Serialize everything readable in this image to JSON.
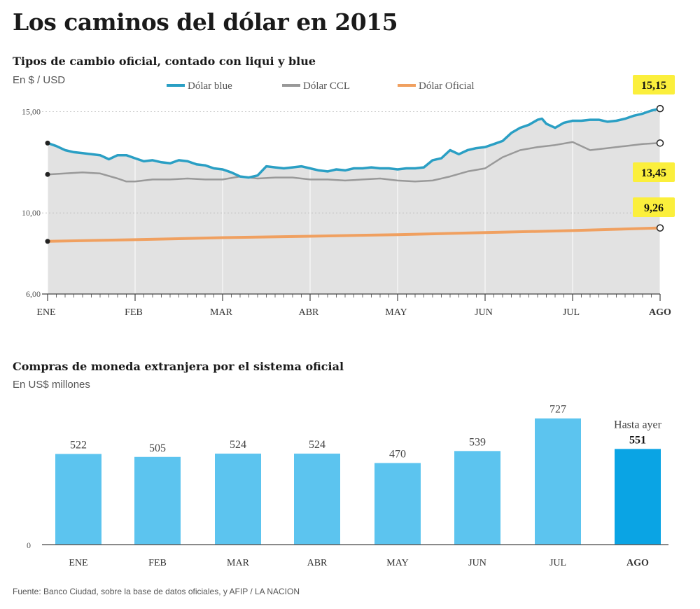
{
  "header": {
    "title": "Los caminos del dólar en 2015"
  },
  "line_section": {
    "subtitle": "Tipos de cambio oficial, contado con liqui y blue",
    "unit": "En $ / USD"
  },
  "bar_section": {
    "subtitle": "Compras de moneda extranjera por el sistema oficial",
    "unit": "En US$ millones"
  },
  "footer": {
    "source": "Fuente: Banco Ciudad, sobre la base de datos oficiales, y AFIP / LA NACION"
  },
  "colors": {
    "blue_line": "#2a9fc4",
    "ccl_line": "#999999",
    "oficial_line": "#f0a060",
    "area_fill": "#e2e2e2",
    "bar": "#5cc4ef",
    "bar_highlight": "#0aa4e4",
    "label_highlight": "#fbef3c"
  },
  "chart_data": [
    {
      "type": "line",
      "ylim": [
        6,
        15.5
      ],
      "yticks": [
        "15,00",
        "10,00",
        "6,00"
      ],
      "ytick_values": [
        15,
        10,
        6
      ],
      "categories": [
        "ENE",
        "FEB",
        "MAR",
        "ABR",
        "MAY",
        "JUN",
        "JUL",
        "AGO"
      ],
      "end_labels": [
        "15,15",
        "13,45",
        "9,26"
      ],
      "series": [
        {
          "name": "Dólar blue",
          "color": "#2a9fc4",
          "x": [
            0,
            0.1,
            0.2,
            0.3,
            0.4,
            0.5,
            0.6,
            0.7,
            0.8,
            0.9,
            1,
            1.1,
            1.2,
            1.3,
            1.4,
            1.5,
            1.6,
            1.7,
            1.8,
            1.9,
            2,
            2.1,
            2.2,
            2.3,
            2.4,
            2.5,
            2.6,
            2.7,
            2.8,
            2.9,
            3,
            3.1,
            3.2,
            3.3,
            3.4,
            3.5,
            3.6,
            3.7,
            3.8,
            3.9,
            4,
            4.1,
            4.2,
            4.3,
            4.4,
            4.5,
            4.6,
            4.7,
            4.8,
            4.9,
            5,
            5.1,
            5.2,
            5.3,
            5.4,
            5.5,
            5.6,
            5.65,
            5.7,
            5.8,
            5.9,
            6,
            6.1,
            6.2,
            6.3,
            6.4,
            6.5,
            6.6,
            6.7,
            6.8,
            6.9,
            7
          ],
          "values": [
            13.45,
            13.3,
            13.1,
            13.0,
            12.95,
            12.9,
            12.85,
            12.65,
            12.85,
            12.85,
            12.7,
            12.55,
            12.6,
            12.5,
            12.45,
            12.6,
            12.55,
            12.4,
            12.35,
            12.2,
            12.15,
            12.0,
            11.8,
            11.75,
            11.85,
            12.3,
            12.25,
            12.2,
            12.25,
            12.3,
            12.2,
            12.1,
            12.05,
            12.15,
            12.1,
            12.2,
            12.2,
            12.25,
            12.2,
            12.2,
            12.15,
            12.2,
            12.2,
            12.25,
            12.6,
            12.7,
            13.1,
            12.9,
            13.1,
            13.2,
            13.25,
            13.4,
            13.55,
            13.95,
            14.2,
            14.35,
            14.6,
            14.65,
            14.4,
            14.2,
            14.45,
            14.55,
            14.55,
            14.6,
            14.6,
            14.5,
            14.55,
            14.65,
            14.8,
            14.9,
            15.05,
            15.15
          ]
        },
        {
          "name": "Dólar CCL",
          "color": "#999999",
          "x": [
            0,
            0.2,
            0.4,
            0.6,
            0.8,
            0.9,
            1,
            1.2,
            1.4,
            1.6,
            1.8,
            2,
            2.2,
            2.4,
            2.6,
            2.8,
            3,
            3.2,
            3.4,
            3.6,
            3.8,
            4,
            4.2,
            4.4,
            4.6,
            4.8,
            5,
            5.2,
            5.4,
            5.6,
            5.8,
            6,
            6.2,
            6.4,
            6.6,
            6.8,
            7
          ],
          "values": [
            11.9,
            11.95,
            12.0,
            11.95,
            11.7,
            11.55,
            11.55,
            11.65,
            11.65,
            11.7,
            11.65,
            11.65,
            11.8,
            11.7,
            11.75,
            11.75,
            11.65,
            11.65,
            11.6,
            11.65,
            11.7,
            11.6,
            11.55,
            11.6,
            11.8,
            12.05,
            12.2,
            12.75,
            13.1,
            13.25,
            13.35,
            13.5,
            13.1,
            13.2,
            13.3,
            13.4,
            13.45
          ]
        },
        {
          "name": "Dólar Oficial",
          "color": "#f0a060",
          "x": [
            0,
            1,
            2,
            3,
            4,
            5,
            6,
            7
          ],
          "values": [
            8.6,
            8.68,
            8.78,
            8.85,
            8.93,
            9.03,
            9.13,
            9.26
          ]
        }
      ]
    },
    {
      "type": "bar",
      "categories": [
        "ENE",
        "FEB",
        "MAR",
        "ABR",
        "MAY",
        "JUN",
        "JUL",
        "AGO"
      ],
      "values": [
        522,
        505,
        524,
        524,
        470,
        539,
        727,
        551
      ],
      "labels": [
        "522",
        "505",
        "524",
        "524",
        "470",
        "539",
        "727",
        "551"
      ],
      "baseline_label": "0",
      "ylim": [
        0,
        800
      ],
      "annotation": "Hasta ayer",
      "highlight_index": 7
    }
  ]
}
